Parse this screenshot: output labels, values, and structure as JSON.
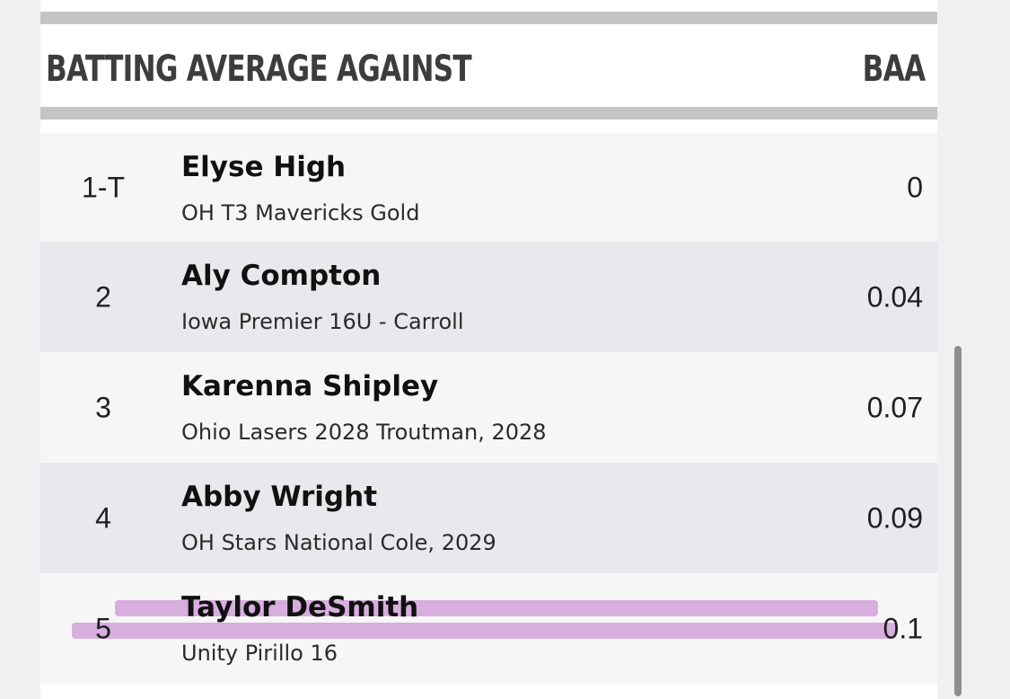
{
  "header": {
    "title": "BATTING AVERAGE AGAINST",
    "column": "BAA"
  },
  "rows": [
    {
      "rank": "1-T",
      "name": "Elyse High",
      "team": "OH T3 Mavericks Gold",
      "value": "0"
    },
    {
      "rank": "2",
      "name": "Aly Compton",
      "team": "Iowa Premier 16U - Carroll",
      "value": "0.04"
    },
    {
      "rank": "3",
      "name": "Karenna Shipley",
      "team": "Ohio Lasers 2028 Troutman, 2028",
      "value": "0.07"
    },
    {
      "rank": "4",
      "name": "Abby Wright",
      "team": "OH Stars National Cole, 2029",
      "value": "0.09"
    },
    {
      "rank": "5",
      "name": "Taylor DeSmith",
      "team": "Unity Pirillo 16",
      "value": "0.1"
    }
  ],
  "colors": {
    "highlight": "#cd96d7",
    "header_bar": "#c4c4c4",
    "row_alt": "#e7e9ec",
    "row": "#f6f6f6"
  }
}
